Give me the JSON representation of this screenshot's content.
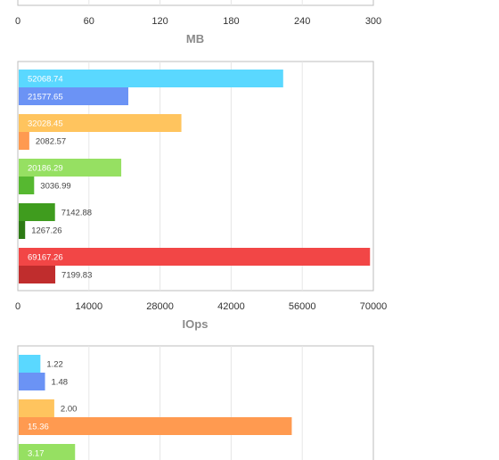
{
  "chart_data": [
    {
      "type": "bar",
      "orientation": "horizontal",
      "xlabel": "MB",
      "xlim": [
        0,
        300
      ],
      "xticks": [
        "0",
        "60",
        "120",
        "180",
        "240",
        "300"
      ],
      "grid": true,
      "bars": []
    },
    {
      "type": "bar",
      "orientation": "horizontal",
      "xlabel": "IOps",
      "xlim": [
        0,
        70000
      ],
      "xticks": [
        "0",
        "14000",
        "28000",
        "42000",
        "56000",
        "70000"
      ],
      "grid": true,
      "bars": [
        {
          "value": 52068.74,
          "label": "52068.74",
          "color": "#5ad8ff",
          "group": 0
        },
        {
          "value": 21577.65,
          "label": "21577.65",
          "color": "#6b93f5",
          "group": 0
        },
        {
          "value": 32028.45,
          "label": "32028.45",
          "color": "#ffc45e",
          "group": 1
        },
        {
          "value": 2082.57,
          "label": "2082.57",
          "color": "#ff9a50",
          "group": 1
        },
        {
          "value": 20186.29,
          "label": "20186.29",
          "color": "#96e062",
          "group": 2
        },
        {
          "value": 3036.99,
          "label": "3036.99",
          "color": "#56b830",
          "group": 2
        },
        {
          "value": 7142.88,
          "label": "7142.88",
          "color": "#3f9c1e",
          "group": 3
        },
        {
          "value": 1267.26,
          "label": "1267.26",
          "color": "#2d7a14",
          "group": 3
        },
        {
          "value": 69167.26,
          "label": "69167.26",
          "color": "#f24646",
          "group": 4
        },
        {
          "value": 7199.83,
          "label": "7199.83",
          "color": "#c02d2d",
          "group": 4
        }
      ]
    },
    {
      "type": "bar",
      "orientation": "horizontal",
      "xlabel": "",
      "xlim": [
        0,
        20
      ],
      "grid": true,
      "bars": [
        {
          "value": 1.22,
          "label": "1.22",
          "color": "#5ad8ff",
          "group": 0
        },
        {
          "value": 1.48,
          "label": "1.48",
          "color": "#6b93f5",
          "group": 0
        },
        {
          "value": 2.0,
          "label": "2.00",
          "color": "#ffc45e",
          "group": 1
        },
        {
          "value": 15.36,
          "label": "15.36",
          "color": "#ff9a50",
          "group": 1
        },
        {
          "value": 3.17,
          "label": "3.17",
          "color": "#96e062",
          "group": 2
        }
      ]
    }
  ]
}
